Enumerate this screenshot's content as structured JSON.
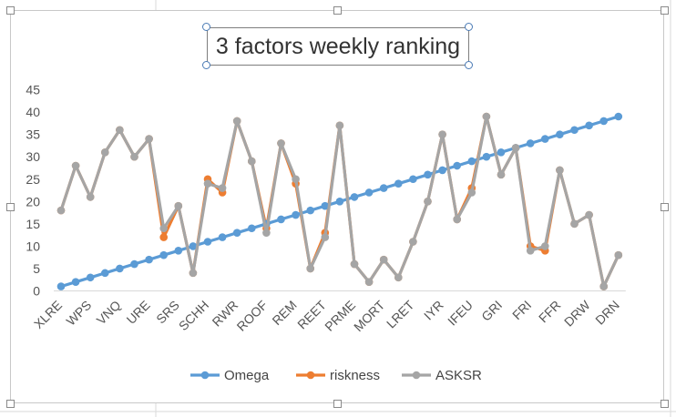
{
  "colors": {
    "omega": "#5b9bd5",
    "riskness": "#ed7d31",
    "asksr": "#a5a5a5",
    "axis_text": "#555555",
    "title_handle": "#4a7ab5"
  },
  "chart_data": {
    "type": "line",
    "title": "3 factors weekly ranking",
    "ylim": [
      0,
      45
    ],
    "yticks": [
      0,
      5,
      10,
      15,
      20,
      25,
      30,
      35,
      40,
      45
    ],
    "grid": false,
    "legend": "bottom",
    "categories": [
      "XLRE",
      "",
      "WPS",
      "",
      "VNQ",
      "",
      "URE",
      "",
      "SRS",
      "",
      "SCHH",
      "",
      "RWR",
      "",
      "ROOF",
      "",
      "REM",
      "",
      "REET",
      "",
      "PRME",
      "",
      "MORT",
      "",
      "LRET",
      "",
      "IYR",
      "",
      "IFEU",
      "",
      "GRI",
      "",
      "FRI",
      "",
      "FFR",
      "",
      "DRW",
      "",
      "DRN"
    ],
    "tick_labels": [
      "XLRE",
      "WPS",
      "VNQ",
      "URE",
      "SRS",
      "SCHH",
      "RWR",
      "ROOF",
      "REM",
      "REET",
      "PRME",
      "MORT",
      "LRET",
      "IYR",
      "IFEU",
      "GRI",
      "FRI",
      "FFR",
      "DRW",
      "DRN"
    ],
    "series": [
      {
        "name": "Omega",
        "values": [
          1,
          2,
          3,
          4,
          5,
          6,
          7,
          8,
          9,
          10,
          11,
          12,
          13,
          14,
          15,
          16,
          17,
          18,
          19,
          20,
          21,
          22,
          23,
          24,
          25,
          26,
          27,
          28,
          29,
          30,
          31,
          32,
          33,
          34,
          35,
          36,
          37,
          38,
          39
        ]
      },
      {
        "name": "riskness",
        "values": [
          18,
          28,
          21,
          31,
          36,
          30,
          34,
          12,
          19,
          4,
          25,
          22,
          38,
          29,
          14,
          33,
          24,
          5,
          13,
          37,
          6,
          2,
          7,
          3,
          11,
          20,
          35,
          16,
          23,
          39,
          26,
          32,
          10,
          9,
          27,
          15,
          17,
          1,
          8
        ]
      },
      {
        "name": "ASKSR",
        "values": [
          18,
          28,
          21,
          31,
          36,
          30,
          34,
          14,
          19,
          4,
          24,
          23,
          38,
          29,
          13,
          33,
          25,
          5,
          12,
          37,
          6,
          2,
          7,
          3,
          11,
          20,
          35,
          16,
          22,
          39,
          26,
          32,
          9,
          10,
          27,
          15,
          17,
          1,
          8
        ]
      }
    ]
  }
}
